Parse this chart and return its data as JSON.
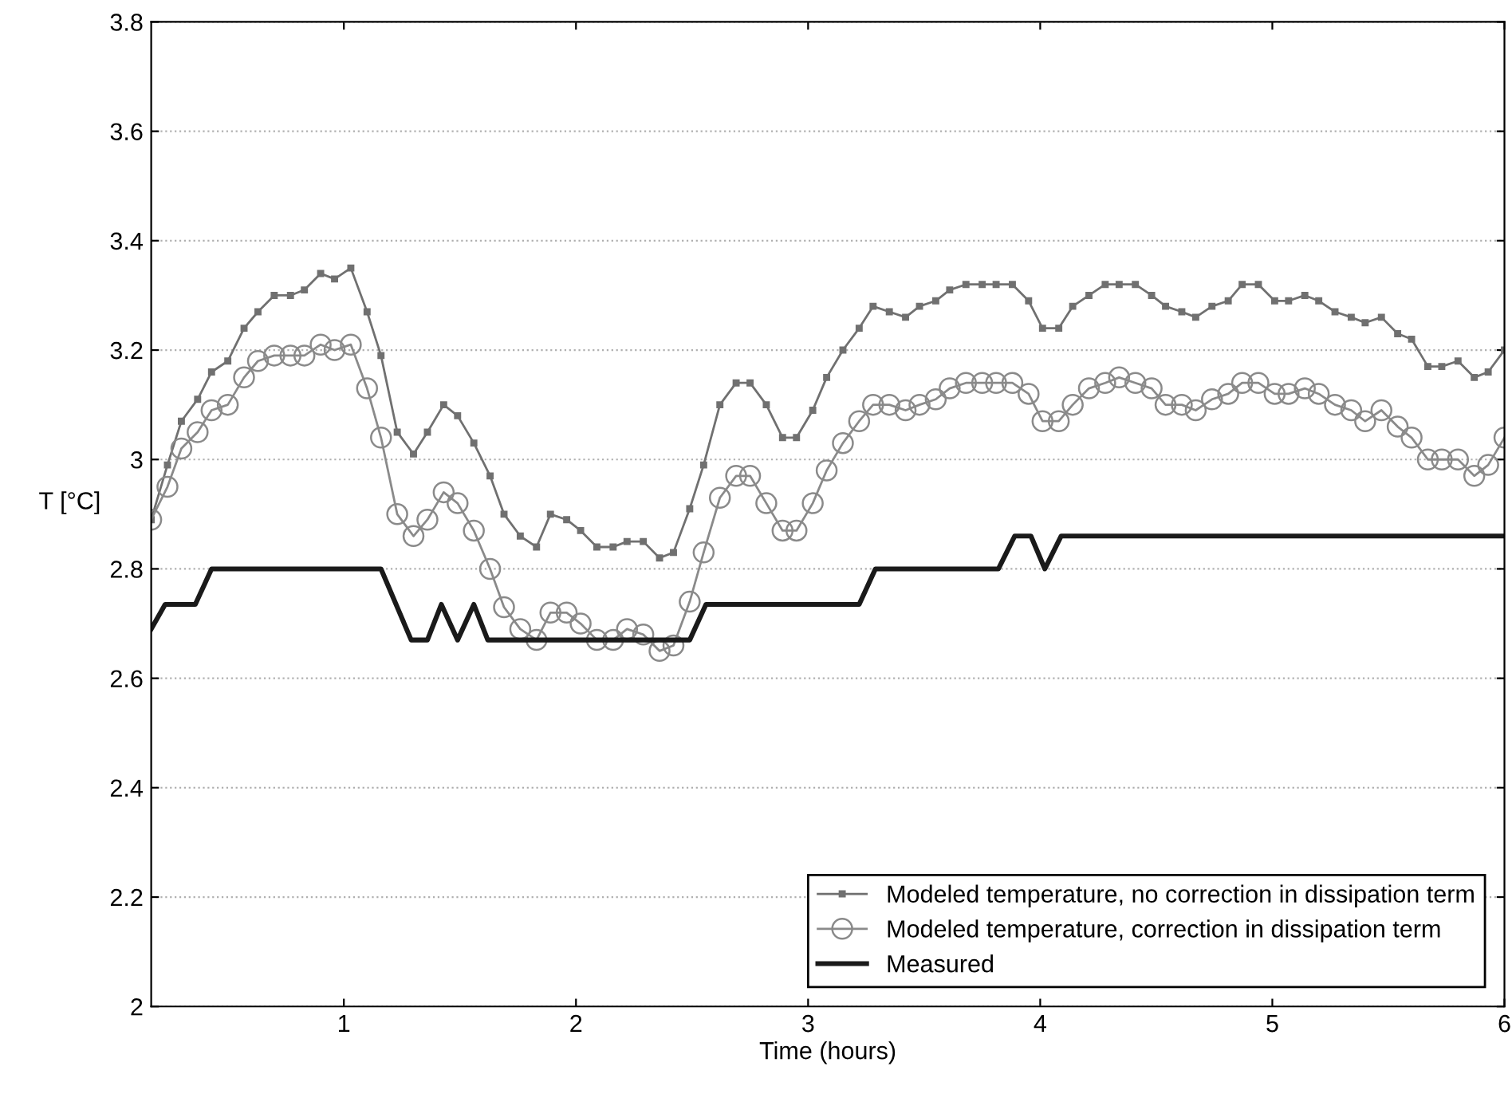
{
  "chart_data": {
    "type": "line",
    "xlabel": "Time (hours)",
    "ylabel": "T [°C]",
    "xlim": [
      0.17,
      6
    ],
    "xticks": [
      1,
      2,
      3,
      4,
      5,
      6
    ],
    "ylim": [
      2,
      3.8
    ],
    "yticks": [
      2,
      2.2,
      2.4,
      2.6,
      2.8,
      3,
      3.2,
      3.4,
      3.6,
      3.8
    ],
    "grid": "y",
    "legend": "bottom right",
    "x": [
      0.17,
      0.24,
      0.3,
      0.37,
      0.43,
      0.5,
      0.57,
      0.63,
      0.7,
      0.77,
      0.83,
      0.9,
      0.96,
      1.03,
      1.1,
      1.16,
      1.23,
      1.3,
      1.36,
      1.43,
      1.49,
      1.56,
      1.63,
      1.69,
      1.76,
      1.83,
      1.89,
      1.96,
      2.02,
      2.09,
      2.16,
      2.22,
      2.29,
      2.36,
      2.42,
      2.49,
      2.55,
      2.62,
      2.69,
      2.75,
      2.82,
      2.89,
      2.95,
      3.02,
      3.08,
      3.15,
      3.22,
      3.28,
      3.35,
      3.42,
      3.48,
      3.55,
      3.61,
      3.68,
      3.75,
      3.81,
      3.88,
      3.95,
      4.01,
      4.08,
      4.14,
      4.21,
      4.28,
      4.34,
      4.41,
      4.48,
      4.54,
      4.61,
      4.67,
      4.74,
      4.81,
      4.87,
      4.94,
      5.01,
      5.07,
      5.14,
      5.2,
      5.27,
      5.34,
      5.4,
      5.47,
      5.54,
      5.6,
      5.67,
      5.73,
      5.8,
      5.87,
      5.93,
      6.0
    ],
    "series": [
      {
        "name": "Modeled temperature, no correction in dissipation term",
        "color": "#707070",
        "marker": "square",
        "values": [
          2.89,
          2.99,
          3.07,
          3.11,
          3.16,
          3.18,
          3.24,
          3.27,
          3.3,
          3.3,
          3.31,
          3.34,
          3.33,
          3.35,
          3.27,
          3.19,
          3.05,
          3.01,
          3.05,
          3.1,
          3.08,
          3.03,
          2.97,
          2.9,
          2.86,
          2.84,
          2.9,
          2.89,
          2.87,
          2.84,
          2.84,
          2.85,
          2.85,
          2.82,
          2.83,
          2.91,
          2.99,
          3.1,
          3.14,
          3.14,
          3.1,
          3.04,
          3.04,
          3.09,
          3.15,
          3.2,
          3.24,
          3.28,
          3.27,
          3.26,
          3.28,
          3.29,
          3.31,
          3.32,
          3.32,
          3.32,
          3.32,
          3.29,
          3.24,
          3.24,
          3.28,
          3.3,
          3.32,
          3.32,
          3.32,
          3.3,
          3.28,
          3.27,
          3.26,
          3.28,
          3.29,
          3.32,
          3.32,
          3.29,
          3.29,
          3.3,
          3.29,
          3.27,
          3.26,
          3.25,
          3.26,
          3.23,
          3.22,
          3.17,
          3.17,
          3.18,
          3.15,
          3.16,
          3.2
        ]
      },
      {
        "name": "Modeled temperature, correction in dissipation term",
        "color": "#8a8a8a",
        "marker": "circle",
        "values": [
          2.89,
          2.95,
          3.02,
          3.05,
          3.09,
          3.1,
          3.15,
          3.18,
          3.19,
          3.19,
          3.19,
          3.21,
          3.2,
          3.21,
          3.13,
          3.04,
          2.9,
          2.86,
          2.89,
          2.94,
          2.92,
          2.87,
          2.8,
          2.73,
          2.69,
          2.67,
          2.72,
          2.72,
          2.7,
          2.67,
          2.67,
          2.69,
          2.68,
          2.65,
          2.66,
          2.74,
          2.83,
          2.93,
          2.97,
          2.97,
          2.92,
          2.87,
          2.87,
          2.92,
          2.98,
          3.03,
          3.07,
          3.1,
          3.1,
          3.09,
          3.1,
          3.11,
          3.13,
          3.14,
          3.14,
          3.14,
          3.14,
          3.12,
          3.07,
          3.07,
          3.1,
          3.13,
          3.14,
          3.15,
          3.14,
          3.13,
          3.1,
          3.1,
          3.09,
          3.11,
          3.12,
          3.14,
          3.14,
          3.12,
          3.12,
          3.13,
          3.12,
          3.1,
          3.09,
          3.07,
          3.09,
          3.06,
          3.04,
          3.0,
          3.0,
          3.0,
          2.97,
          2.99,
          3.04
        ]
      },
      {
        "name": "Measured",
        "color": "#1a1a1a",
        "marker": "none",
        "x": [
          0.17,
          0.23,
          0.36,
          0.43,
          1.16,
          1.29,
          1.36,
          1.42,
          1.49,
          1.56,
          1.62,
          2.49,
          2.56,
          3.22,
          3.29,
          3.82,
          3.89,
          3.96,
          4.02,
          4.09,
          6.0
        ],
        "values": [
          2.69,
          2.735,
          2.735,
          2.8,
          2.8,
          2.67,
          2.67,
          2.735,
          2.67,
          2.735,
          2.67,
          2.67,
          2.735,
          2.735,
          2.8,
          2.8,
          2.86,
          2.86,
          2.8,
          2.86,
          2.86
        ]
      }
    ]
  }
}
